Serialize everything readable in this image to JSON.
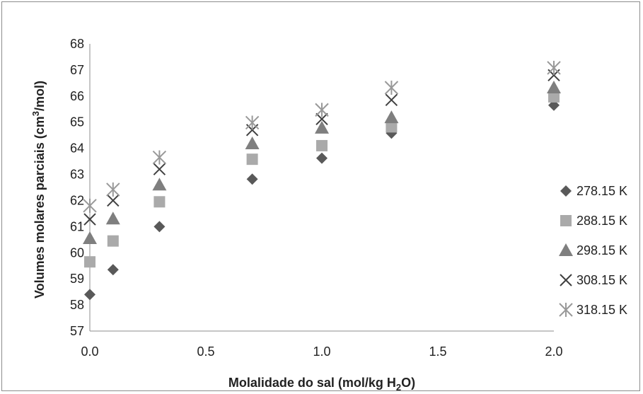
{
  "chart_data": {
    "type": "scatter",
    "xlabel": "Molalidade do sal (mol/kg H2O)",
    "xlabel_parts": {
      "pre": "Molalidade do sal (mol/kg H",
      "sub": "2",
      "post": "O)"
    },
    "ylabel": "Volumes molares parciais (cm3/mol)",
    "ylabel_parts": {
      "pre": "Volumes molares parciais (cm",
      "sup": "3",
      "post": "/mol)"
    },
    "xlim": [
      0,
      2.0
    ],
    "ylim": [
      57,
      68
    ],
    "xticks": [
      "0.0",
      "0.5",
      "1.0",
      "1.5",
      "2.0"
    ],
    "yticks": [
      "57",
      "58",
      "59",
      "60",
      "61",
      "62",
      "63",
      "64",
      "65",
      "66",
      "67",
      "68"
    ],
    "grid": false,
    "legend_position": "right",
    "x": [
      0.0,
      0.1,
      0.3,
      0.7,
      1.0,
      1.3,
      2.0
    ],
    "series": [
      {
        "name": "278.15 K",
        "marker": "diamond",
        "color": "#595959",
        "y": [
          58.4,
          59.35,
          61.0,
          62.82,
          63.62,
          64.58,
          65.65
        ]
      },
      {
        "name": "288.15 K",
        "marker": "square",
        "color": "#aaaaaa",
        "y": [
          59.65,
          60.45,
          61.95,
          63.58,
          64.1,
          64.82,
          65.97
        ]
      },
      {
        "name": "298.15 K",
        "marker": "triangle",
        "color": "#7f7f7f",
        "y": [
          60.55,
          61.3,
          62.6,
          64.18,
          64.78,
          65.18,
          66.32
        ]
      },
      {
        "name": "308.15 K",
        "marker": "x",
        "color": "#404040",
        "y": [
          61.28,
          62.0,
          63.2,
          64.7,
          65.12,
          65.85,
          66.8
        ]
      },
      {
        "name": "318.15 K",
        "marker": "star",
        "color": "#999999",
        "y": [
          61.8,
          62.42,
          63.65,
          64.98,
          65.47,
          66.32,
          67.08
        ]
      }
    ]
  }
}
